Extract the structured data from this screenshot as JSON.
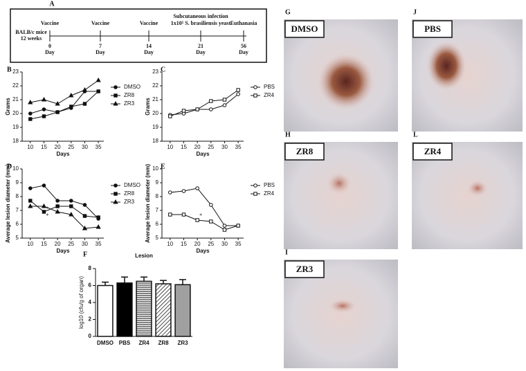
{
  "timeline": {
    "panel": "A",
    "subject": [
      "BALB/c mice",
      "12 weeks"
    ],
    "events": [
      {
        "label": "Vaccine",
        "day": "0",
        "unit": "Day"
      },
      {
        "label": "Vaccine",
        "day": "7",
        "unit": "Day"
      },
      {
        "label": "Vaccine",
        "day": "14",
        "unit": "Day"
      },
      {
        "label": "Subcutaneous infection",
        "label2": "1x10⁵ S. brasiliensis yeast",
        "day": "21",
        "unit": "Day"
      },
      {
        "label": "Euthanasia",
        "day": "56",
        "unit": "Day"
      }
    ]
  },
  "chart_data": [
    {
      "type": "line",
      "panel": "B",
      "ylabel": "Grams",
      "xlabel": "Days",
      "x": [
        10,
        15,
        20,
        25,
        30,
        35
      ],
      "xlim": [
        7,
        37
      ],
      "xticks": [
        10,
        15,
        20,
        25,
        30,
        35
      ],
      "ylim": [
        18,
        23
      ],
      "yticks": [
        18,
        19,
        20,
        21,
        22,
        23
      ],
      "series": [
        {
          "name": "DMSO",
          "color": "#111",
          "marker": "circle",
          "hollow": false,
          "values": [
            20.0,
            20.3,
            20.1,
            20.4,
            21.6,
            21.6
          ]
        },
        {
          "name": "ZR8",
          "color": "#111",
          "marker": "square",
          "hollow": false,
          "values": [
            19.6,
            19.8,
            20.1,
            20.5,
            20.7,
            21.6
          ]
        },
        {
          "name": "ZR3",
          "color": "#111",
          "marker": "triangle",
          "hollow": false,
          "values": [
            20.8,
            21.0,
            20.7,
            21.3,
            21.7,
            22.4
          ]
        }
      ]
    },
    {
      "type": "line",
      "panel": "C",
      "ylabel": "Grams",
      "xlabel": "Days",
      "x": [
        10,
        15,
        20,
        25,
        30,
        35
      ],
      "xlim": [
        7,
        37
      ],
      "xticks": [
        10,
        15,
        20,
        25,
        30,
        35
      ],
      "ylim": [
        18,
        23
      ],
      "yticks": [
        18,
        19,
        20,
        21,
        22,
        23
      ],
      "series": [
        {
          "name": "PBS",
          "color": "#111",
          "marker": "circle",
          "hollow": true,
          "values": [
            19.9,
            20.0,
            20.3,
            20.3,
            20.6,
            21.4
          ]
        },
        {
          "name": "ZR4",
          "color": "#111",
          "marker": "square",
          "hollow": true,
          "values": [
            19.8,
            20.2,
            20.3,
            20.9,
            21.0,
            21.7
          ]
        }
      ]
    },
    {
      "type": "line",
      "panel": "D",
      "ylabel": "Average lesion diameter (mm)",
      "xlabel": "Days",
      "x": [
        10,
        15,
        20,
        25,
        30,
        35
      ],
      "xlim": [
        7,
        37
      ],
      "xticks": [
        10,
        15,
        20,
        25,
        30,
        35
      ],
      "ylim": [
        5,
        10
      ],
      "yticks": [
        5,
        6,
        7,
        8,
        9,
        10
      ],
      "annotations": [
        {
          "text": "*",
          "x": 15,
          "y": 7.1
        },
        {
          "text": "*",
          "x": 15,
          "y": 6.6
        }
      ],
      "series": [
        {
          "name": "DMSO",
          "color": "#111",
          "marker": "circle",
          "hollow": false,
          "values": [
            8.6,
            8.8,
            7.7,
            7.7,
            7.4,
            6.4
          ]
        },
        {
          "name": "ZR8",
          "color": "#111",
          "marker": "square",
          "hollow": false,
          "values": [
            7.7,
            6.9,
            7.3,
            7.3,
            6.6,
            6.5
          ]
        },
        {
          "name": "ZR3",
          "color": "#111",
          "marker": "triangle",
          "hollow": false,
          "values": [
            7.3,
            7.3,
            6.9,
            6.7,
            5.7,
            5.8
          ]
        }
      ]
    },
    {
      "type": "line",
      "panel": "E",
      "ylabel": "Average lesion diameter (mm)",
      "xlabel": "Days",
      "x": [
        10,
        15,
        20,
        25,
        30,
        35
      ],
      "xlim": [
        7,
        37
      ],
      "xticks": [
        10,
        15,
        20,
        25,
        30,
        35
      ],
      "ylim": [
        5,
        10
      ],
      "yticks": [
        5,
        6,
        7,
        8,
        9,
        10
      ],
      "annotations": [
        {
          "text": "*",
          "x": 20,
          "y": 6.6
        }
      ],
      "series": [
        {
          "name": "PBS",
          "color": "#111",
          "marker": "circle",
          "hollow": true,
          "values": [
            8.3,
            8.4,
            8.6,
            7.4,
            5.9,
            5.9
          ]
        },
        {
          "name": "ZR4",
          "color": "#111",
          "marker": "square",
          "hollow": true,
          "values": [
            6.7,
            6.7,
            6.3,
            6.2,
            5.6,
            5.9
          ]
        }
      ]
    },
    {
      "type": "bar",
      "panel": "F",
      "title": "Lesion",
      "ylabel": "log10 (cfu/g of organ)",
      "categories": [
        "DMSO",
        "PBS",
        "ZR4",
        "ZR8",
        "ZR3"
      ],
      "values": [
        6.0,
        6.3,
        6.5,
        6.2,
        6.1
      ],
      "errors": [
        0.4,
        0.7,
        0.5,
        0.4,
        0.6
      ],
      "colors": [
        "#ffffff",
        "#000000",
        "url(#hh)",
        "url(#dh)",
        "#a0a0a0"
      ],
      "ylim": [
        0,
        8
      ],
      "yticks": [
        0,
        2,
        4,
        6,
        8
      ]
    }
  ],
  "photos": [
    {
      "panel": "G",
      "label": "DMSO"
    },
    {
      "panel": "J",
      "label": "PBS"
    },
    {
      "panel": "H",
      "label": "ZR8"
    },
    {
      "panel": "L",
      "label": "ZR4"
    },
    {
      "panel": "I",
      "label": "ZR3"
    }
  ]
}
